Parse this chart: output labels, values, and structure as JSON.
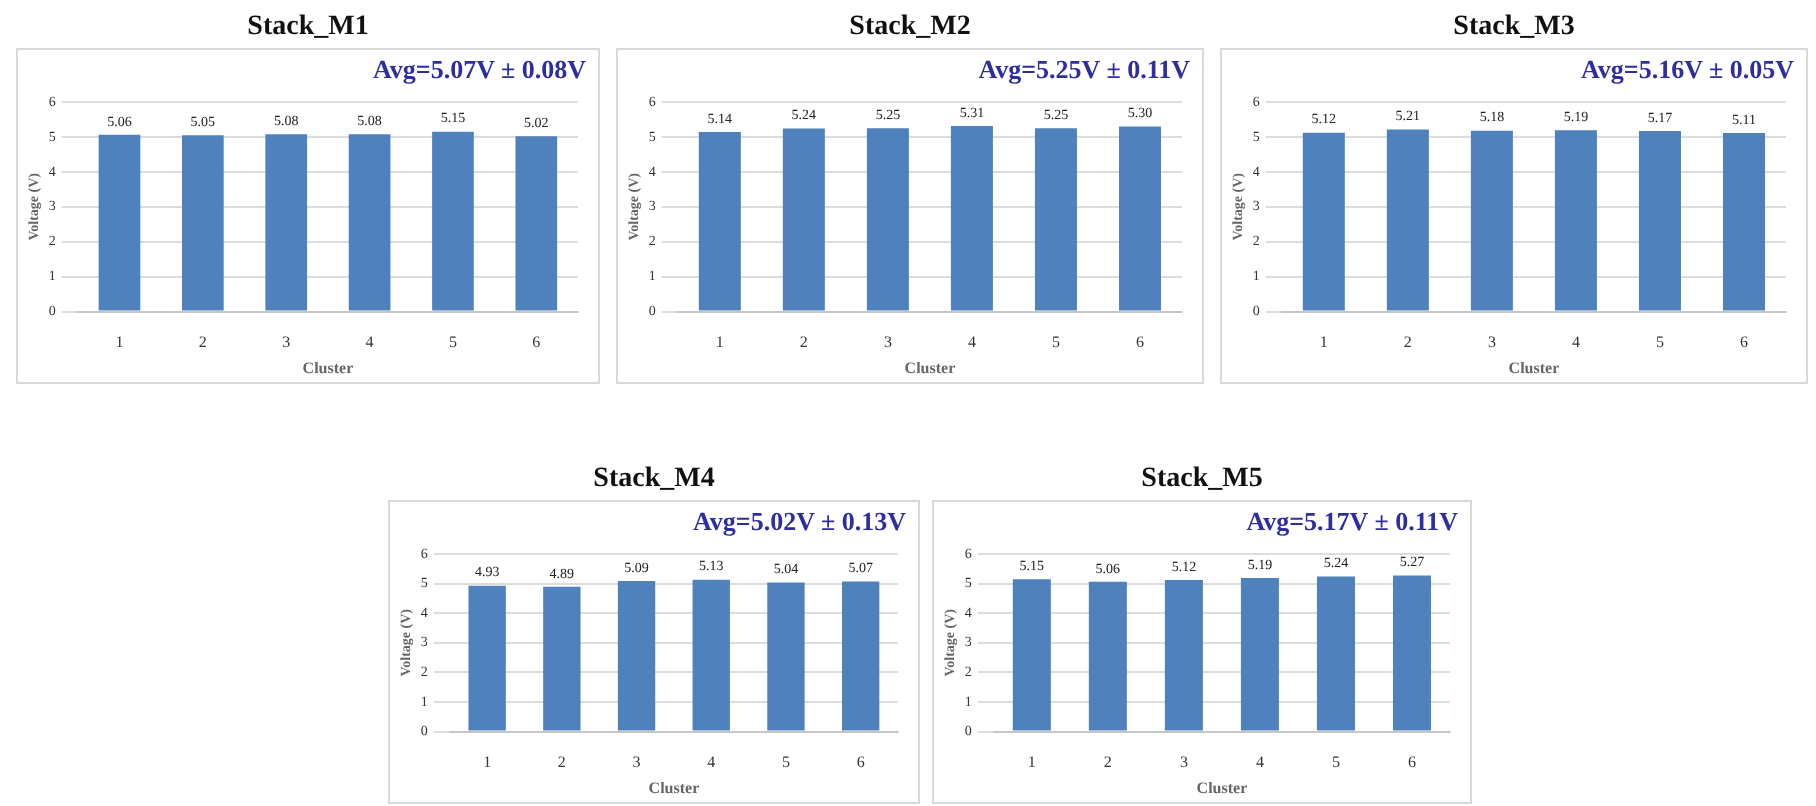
{
  "chart_data": [
    {
      "type": "bar",
      "title": "Stack_M1",
      "annotations": [
        "Avg=5.07V ± 0.08V"
      ],
      "xlabel": "Cluster",
      "ylabel": "Voltage (V)",
      "categories": [
        "1",
        "2",
        "3",
        "4",
        "5",
        "6"
      ],
      "values": [
        5.06,
        5.05,
        5.08,
        5.08,
        5.15,
        5.02
      ],
      "color": "#4f81bd",
      "ylim": [
        0,
        6
      ],
      "yticks": [
        0,
        1,
        2,
        3,
        4,
        5,
        6
      ],
      "grid": "y",
      "data_labels": true
    },
    {
      "type": "bar",
      "title": "Stack_M2",
      "annotations": [
        "Avg=5.25V ± 0.11V"
      ],
      "xlabel": "Cluster",
      "ylabel": "Voltage (V)",
      "categories": [
        "1",
        "2",
        "3",
        "4",
        "5",
        "6"
      ],
      "values": [
        5.14,
        5.24,
        5.25,
        5.31,
        5.25,
        5.3
      ],
      "value_labels": [
        "5.14",
        "5.24",
        "5.25",
        "5.31",
        "5.25",
        "5.30"
      ],
      "color": "#4f81bd",
      "ylim": [
        0,
        6
      ],
      "yticks": [
        0,
        1,
        2,
        3,
        4,
        5,
        6
      ],
      "grid": "y"
    },
    {
      "type": "bar",
      "title": "Stack_M3",
      "annotations": [
        "Avg=5.16V ± 0.05V"
      ],
      "xlabel": "Cluster",
      "ylabel": "Voltage (V)",
      "categories": [
        "1",
        "2",
        "3",
        "4",
        "5",
        "6"
      ],
      "values": [
        5.12,
        5.21,
        5.18,
        5.19,
        5.17,
        5.11
      ],
      "color": "#4f81bd",
      "ylim": [
        0,
        6
      ],
      "yticks": [
        0,
        1,
        2,
        3,
        4,
        5,
        6
      ],
      "grid": "y",
      "data_labels": true
    },
    {
      "type": "bar",
      "title": "Stack_M4",
      "annotations": [
        "Avg=5.02V ± 0.13V"
      ],
      "xlabel": "Cluster",
      "ylabel": "Voltage (V)",
      "categories": [
        "1",
        "2",
        "3",
        "4",
        "5",
        "6"
      ],
      "values": [
        4.93,
        4.89,
        5.09,
        5.13,
        5.04,
        5.07
      ],
      "color": "#4f81bd",
      "ylim": [
        0,
        6
      ],
      "yticks": [
        0,
        1,
        2,
        3,
        4,
        5,
        6
      ],
      "grid": "y",
      "data_labels": true
    },
    {
      "type": "bar",
      "title": "Stack_M5",
      "annotations": [
        "Avg=5.17V ± 0.11V"
      ],
      "xlabel": "Cluster",
      "ylabel": "Voltage (V)",
      "categories": [
        "1",
        "2",
        "3",
        "4",
        "5",
        "6"
      ],
      "values": [
        5.15,
        5.06,
        5.12,
        5.19,
        5.24,
        5.27
      ],
      "color": "#4f81bd",
      "ylim": [
        0,
        6
      ],
      "yticks": [
        0,
        1,
        2,
        3,
        4,
        5,
        6
      ],
      "grid": "y",
      "data_labels": true
    }
  ]
}
